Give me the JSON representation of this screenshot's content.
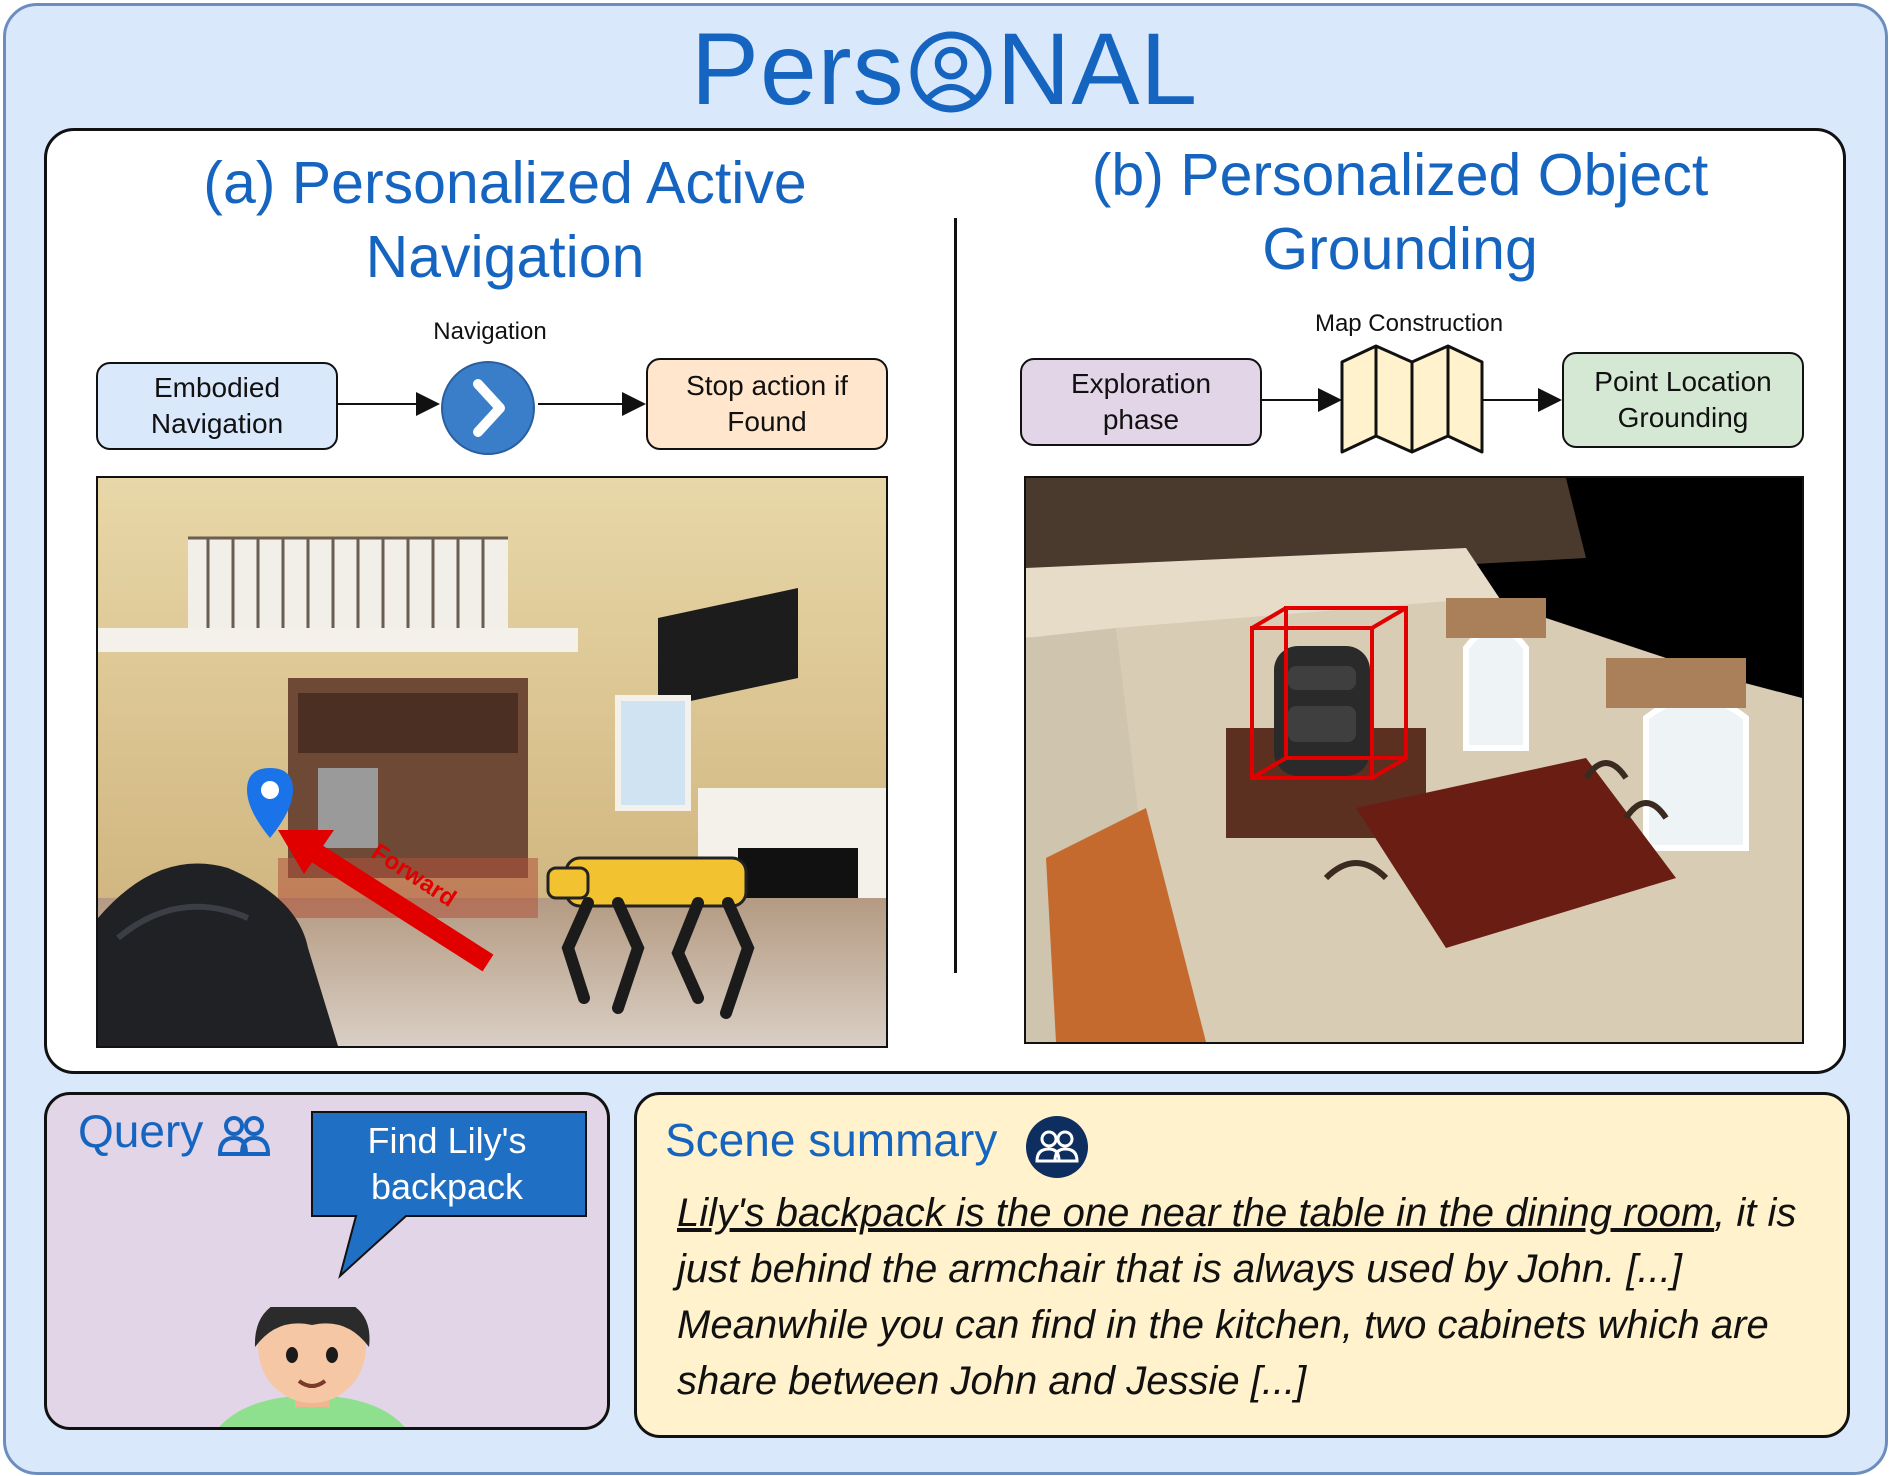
{
  "brand": {
    "text_before": "Pers",
    "text_after": "NAL",
    "logo_icon": "person-circle-icon"
  },
  "section_a": {
    "title_line1": "(a) Personalized Active",
    "title_line2": "Navigation",
    "box_start": {
      "line1": "Embodied",
      "line2": "Navigation"
    },
    "step_label": "Navigation",
    "step_icon": "chevron-right-circle-icon",
    "box_end": {
      "line1": "Stop action if",
      "line2": "Found"
    },
    "arrow_label": "Forward"
  },
  "section_b": {
    "title_line1": "(b) Personalized Object",
    "title_line2": "Grounding",
    "box_start": {
      "line1": "Exploration",
      "line2": "phase"
    },
    "step_label": "Map Construction",
    "step_icon": "folded-map-icon",
    "box_end": {
      "line1": "Point Location",
      "line2": "Grounding"
    }
  },
  "query": {
    "title": "Query",
    "title_icon": "users-icon",
    "bubble_line1": "Find Lily's",
    "bubble_line2": "backpack",
    "avatar_icon": "man-avatar-icon"
  },
  "summary": {
    "title": "Scene summary",
    "title_icon": "users-badge-icon",
    "text_underlined": "Lily's backpack is the one near the table in the dining room",
    "text_rest": ", it is just behind the armchair that is always used by John. [...] Meanwhile you can find in the kitchen, two cabinets which are share between John and Jessie [...]"
  },
  "colors": {
    "frame_bg": "#dae8fc",
    "frame_border": "#6c8ebf",
    "accent_blue": "#1565c0",
    "box_blue": "#dae8fc",
    "box_orange": "#ffe6cc",
    "box_purple": "#e1d5e7",
    "box_green": "#d5e8d4",
    "box_yellow": "#fff2cc",
    "bbox_red": "#e00000"
  }
}
